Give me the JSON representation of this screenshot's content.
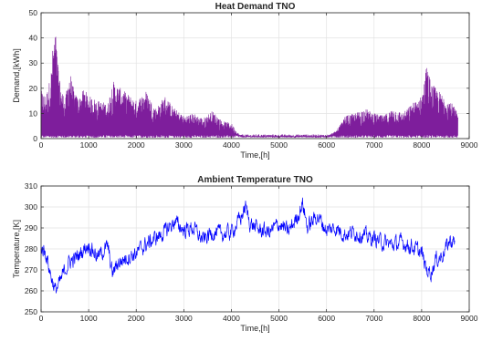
{
  "chart_data": [
    {
      "type": "line",
      "title": "Heat Demand TNO",
      "xlabel": "Time,[h]",
      "ylabel": "Demand,[kWh]",
      "xlim": [
        0,
        9000
      ],
      "ylim": [
        0,
        50
      ],
      "xticks": [
        "0",
        "1000",
        "2000",
        "3000",
        "4000",
        "5000",
        "6000",
        "7000",
        "8000",
        "9000"
      ],
      "yticks": [
        "0",
        "10",
        "20",
        "30",
        "40",
        "50"
      ],
      "grid": true,
      "color": "#7E1E9C",
      "series": [
        {
          "x": [
            0,
            100,
            200,
            250,
            300,
            350,
            400,
            500,
            600,
            700,
            800,
            900,
            1000,
            1200,
            1400,
            1500,
            1600,
            1800,
            2000,
            2200,
            2400,
            2600,
            2800,
            3000,
            3200,
            3400,
            3600,
            3800,
            4000,
            4100,
            4200,
            4500,
            5000,
            5500,
            6000,
            6200,
            6400,
            6600,
            6800,
            7000,
            7200,
            7400,
            7600,
            7800,
            8000,
            8100,
            8200,
            8300,
            8400,
            8600,
            8760
          ],
          "y": [
            19,
            17,
            25,
            38,
            43,
            30,
            22,
            15,
            27,
            18,
            16,
            20,
            17,
            15,
            14,
            23,
            21,
            18,
            15,
            19,
            12,
            17,
            12,
            9,
            10,
            8,
            11,
            7,
            6,
            3,
            1,
            1,
            1,
            1,
            1,
            3,
            9,
            10,
            12,
            10,
            9,
            12,
            10,
            14,
            17,
            29,
            22,
            20,
            18,
            15,
            10
          ]
        }
      ]
    },
    {
      "type": "line",
      "title": "Ambient Temperature TNO",
      "xlabel": "Time,[h]",
      "ylabel": "Temperature,[K]",
      "xlim": [
        0,
        9000
      ],
      "ylim": [
        250,
        310
      ],
      "xticks": [
        "0",
        "1000",
        "2000",
        "3000",
        "4000",
        "5000",
        "6000",
        "7000",
        "8000",
        "9000"
      ],
      "yticks": [
        "250",
        "260",
        "270",
        "280",
        "290",
        "300",
        "310"
      ],
      "grid": true,
      "color": "#0000FF",
      "series": [
        {
          "x": [
            0,
            100,
            200,
            300,
            400,
            500,
            600,
            700,
            800,
            900,
            1000,
            1100,
            1200,
            1300,
            1400,
            1500,
            1600,
            1800,
            2000,
            2200,
            2400,
            2600,
            2800,
            3000,
            3200,
            3400,
            3600,
            3800,
            4000,
            4200,
            4300,
            4400,
            4600,
            4800,
            5000,
            5200,
            5400,
            5500,
            5600,
            5800,
            6000,
            6200,
            6400,
            6600,
            6800,
            7000,
            7200,
            7400,
            7600,
            7800,
            8000,
            8100,
            8200,
            8300,
            8400,
            8500,
            8600,
            8700
          ],
          "y": [
            281,
            278,
            268,
            260,
            264,
            270,
            274,
            275,
            277,
            280,
            282,
            279,
            276,
            279,
            281,
            268,
            273,
            276,
            278,
            282,
            285,
            288,
            293,
            289,
            290,
            284,
            288,
            287,
            288,
            295,
            300,
            292,
            289,
            288,
            292,
            288,
            296,
            302,
            290,
            296,
            289,
            290,
            287,
            288,
            286,
            285,
            283,
            282,
            283,
            281,
            278,
            270,
            269,
            275,
            276,
            280,
            284,
            283
          ]
        }
      ]
    }
  ]
}
